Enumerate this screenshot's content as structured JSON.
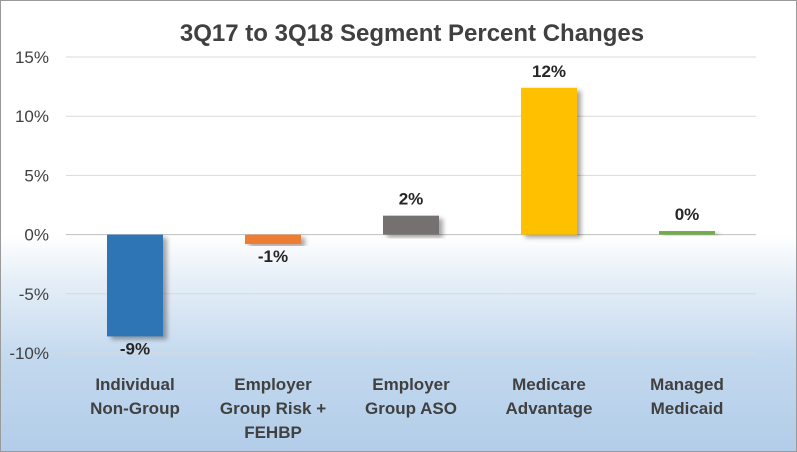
{
  "chart_data": {
    "type": "bar",
    "title": "3Q17 to 3Q18 Segment Percent Changes",
    "xlabel": "",
    "ylabel": "",
    "ylim": [
      -10,
      15
    ],
    "yticks": [
      15,
      10,
      5,
      0,
      -5,
      -10
    ],
    "ytick_labels": [
      "15%",
      "10%",
      "5%",
      "0%",
      "-5%",
      "-10%"
    ],
    "grid": true,
    "legend": "none",
    "categories": [
      [
        "Individual",
        "Non-Group"
      ],
      [
        "Employer",
        "Group Risk +",
        "FEHBP"
      ],
      [
        "Employer",
        "Group ASO"
      ],
      [
        "Medicare",
        "Advantage"
      ],
      [
        "Managed",
        "Medicaid"
      ]
    ],
    "values": [
      -8.6,
      -0.8,
      1.6,
      12.4,
      0.3
    ],
    "data_labels": [
      "-9%",
      "-1%",
      "2%",
      "12%",
      "0%"
    ],
    "colors": [
      "#2e75b6",
      "#ed7d31",
      "#767171",
      "#ffc000",
      "#70ad47"
    ]
  }
}
